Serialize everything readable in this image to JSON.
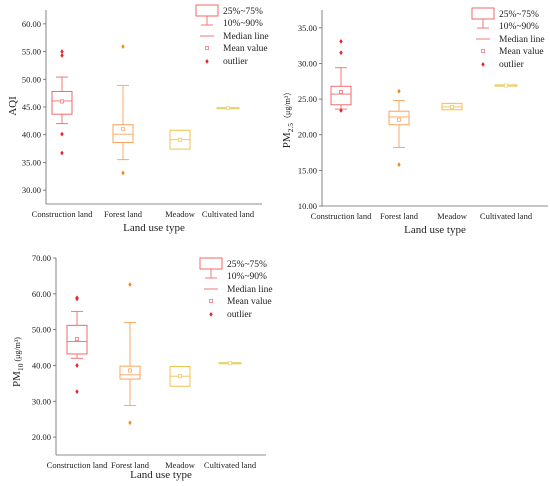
{
  "colors": {
    "construction": "#f06a6a",
    "forest": "#f7a35c",
    "meadow": "#f2c14e",
    "cultivated": "#e8d36a",
    "outlier_construction": "#e8242e",
    "outlier_forest": "#f08a1c"
  },
  "chart_data": [
    {
      "type": "box",
      "ylabel": "AQI",
      "xlabel": "Land use type",
      "ylim": [
        27.5,
        62.5
      ],
      "yticks": [
        "30.00",
        "35.00",
        "40.00",
        "45.00",
        "50.00",
        "55.00",
        "60.00"
      ],
      "categories": [
        "Construction land",
        "Forest land",
        "Meadow",
        "Cultivated land"
      ],
      "legend": [
        "25%~75%",
        "10%~90%",
        "Median line",
        "Mean value",
        "outlier"
      ],
      "boxes": [
        {
          "q1": 43.7,
          "q3": 47.8,
          "median": 46.1,
          "mean": 46.0,
          "p10": 42.0,
          "p90": 50.4,
          "outliers": [
            55.0,
            54.3,
            40.1,
            36.7
          ]
        },
        {
          "q1": 38.6,
          "q3": 41.8,
          "median": 40.1,
          "mean": 41.0,
          "p10": 35.5,
          "p90": 48.9,
          "outliers": [
            55.9,
            33.1
          ]
        },
        {
          "q1": 37.4,
          "q3": 40.8,
          "median": 39.1,
          "mean": 39.1,
          "outliers": []
        },
        {
          "q1": 44.7,
          "q3": 44.9,
          "median": 44.8,
          "mean": 44.8,
          "outliers": []
        }
      ]
    },
    {
      "type": "box",
      "ylabel": "PM",
      "ylabel_sub": "2.5",
      "ylabel_unit": "（μg/m³）",
      "xlabel": "Land use type",
      "ylim": [
        10,
        37.5
      ],
      "yticks": [
        "10.00",
        "15.00",
        "20.00",
        "25.00",
        "30.00",
        "35.00"
      ],
      "categories": [
        "Construction land",
        "Forest land",
        "Meadow",
        "Cultivated land"
      ],
      "legend": [
        "25%~75%",
        "10%~90%",
        "Median line",
        "Mean value",
        "outlier"
      ],
      "boxes": [
        {
          "q1": 24.2,
          "q3": 26.8,
          "median": 25.7,
          "mean": 26.0,
          "p10": 23.6,
          "p90": 29.4,
          "outliers": [
            33.1,
            31.5,
            23.4
          ]
        },
        {
          "q1": 21.4,
          "q3": 23.3,
          "median": 22.5,
          "mean": 22.1,
          "p10": 18.2,
          "p90": 24.8,
          "outliers": [
            26.1,
            15.8
          ]
        },
        {
          "q1": 23.5,
          "q3": 24.4,
          "median": 23.9,
          "mean": 23.9,
          "outliers": []
        },
        {
          "q1": 26.8,
          "q3": 27.0,
          "median": 26.9,
          "mean": 26.9,
          "outliers": []
        }
      ]
    },
    {
      "type": "box",
      "ylabel": "PM",
      "ylabel_sub": "10",
      "ylabel_unit": " (μg/m³)",
      "xlabel": "Land use type",
      "ylim": [
        15,
        70
      ],
      "yticks": [
        "20.00",
        "30.00",
        "40.00",
        "50.00",
        "60.00",
        "70.00"
      ],
      "categories": [
        "Construction land",
        "Forest land",
        "Meadow",
        "Cultivated land"
      ],
      "legend": [
        "25%~75%",
        "10%~90%",
        "Median line",
        "Mean value",
        "outlier"
      ],
      "boxes": [
        {
          "q1": 43.2,
          "q3": 51.2,
          "median": 46.7,
          "mean": 47.4,
          "p10": 42.0,
          "p90": 55.1,
          "outliers": [
            58.9,
            58.6,
            40.0,
            32.7
          ]
        },
        {
          "q1": 36.2,
          "q3": 39.8,
          "median": 37.4,
          "mean": 38.6,
          "p10": 28.8,
          "p90": 52.0,
          "outliers": [
            62.6,
            24.0
          ]
        },
        {
          "q1": 34.2,
          "q3": 39.7,
          "median": 37.0,
          "mean": 37.0,
          "outliers": []
        },
        {
          "q1": 40.5,
          "q3": 40.8,
          "median": 40.6,
          "mean": 40.6,
          "outliers": []
        }
      ]
    }
  ]
}
